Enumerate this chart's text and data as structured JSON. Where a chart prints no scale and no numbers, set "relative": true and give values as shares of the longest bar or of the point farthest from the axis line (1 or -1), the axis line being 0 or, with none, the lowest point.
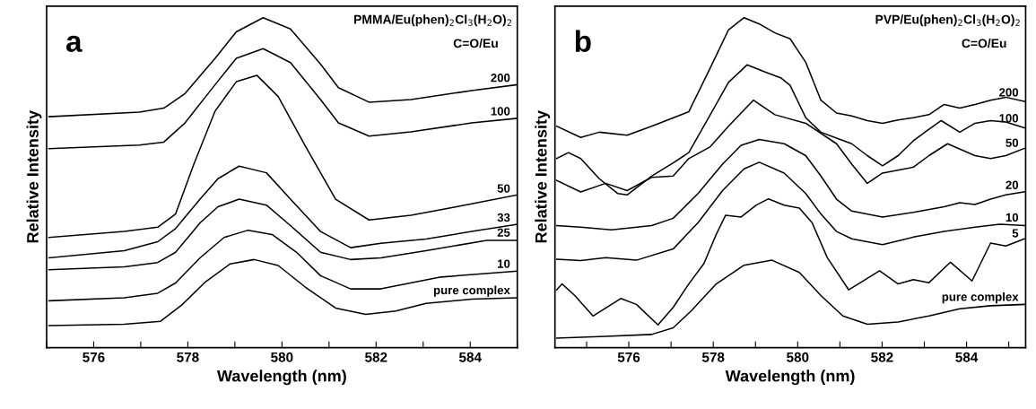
{
  "chart_data": [
    {
      "type": "line",
      "title": "a",
      "annotations": [
        "PMMA/Eu(phen)$_{2}$Cl$_{3}$(H$_{2}$O)$_{2}$",
        "C=O/Eu"
      ],
      "xlabel": "Wavelength (nm)",
      "ylabel": "Relative Intensity",
      "relative": true,
      "xlim": [
        575,
        585
      ],
      "xticks": [
        {
          "value": 575,
          "label": null
        },
        576,
        {
          "value": 577,
          "label": null
        },
        578,
        {
          "value": 579,
          "label": null
        },
        580,
        {
          "value": 581,
          "label": null
        },
        582,
        {
          "value": 583,
          "label": null
        },
        584,
        {
          "value": 585,
          "label": null
        }
      ],
      "grid": false,
      "legend": false,
      "marker": "none",
      "line_style": "solid",
      "series": [
        {
          "name": "200",
          "color": "#000000",
          "x": [
            575.05,
            576.97,
            577.49,
            577.94,
            578.58,
            579.03,
            579.6,
            580.18,
            580.82,
            581.2,
            581.85,
            582.74,
            584.03,
            585
          ],
          "values": [
            0.7,
            0.714,
            0.726,
            0.77,
            0.877,
            0.957,
            1.0,
            0.966,
            0.859,
            0.788,
            0.744,
            0.752,
            0.779,
            0.797
          ]
        },
        {
          "name": "100",
          "color": "#000000",
          "x": [
            575.05,
            576.97,
            577.49,
            577.94,
            578.58,
            579.03,
            579.6,
            580.18,
            580.82,
            581.2,
            581.85,
            582.74,
            584.03,
            585
          ],
          "values": [
            0.603,
            0.614,
            0.623,
            0.681,
            0.797,
            0.877,
            0.906,
            0.864,
            0.752,
            0.681,
            0.641,
            0.654,
            0.681,
            0.695
          ]
        },
        {
          "name": "50",
          "color": "#000000",
          "x": [
            575.05,
            576.65,
            577.36,
            577.74,
            578.13,
            578.58,
            579.03,
            579.47,
            579.92,
            580.5,
            581.14,
            581.85,
            582.74,
            583.71,
            585
          ],
          "values": [
            0.334,
            0.352,
            0.365,
            0.405,
            0.557,
            0.717,
            0.806,
            0.825,
            0.761,
            0.61,
            0.45,
            0.387,
            0.401,
            0.427,
            0.463
          ]
        },
        {
          "name": "33",
          "color": "#000000",
          "x": [
            575.05,
            576.65,
            577.36,
            577.74,
            578.26,
            578.64,
            579.09,
            579.67,
            580.18,
            580.82,
            581.46,
            582.1,
            583.06,
            584.03,
            585
          ],
          "values": [
            0.272,
            0.294,
            0.321,
            0.361,
            0.45,
            0.512,
            0.55,
            0.53,
            0.45,
            0.352,
            0.303,
            0.316,
            0.329,
            0.352,
            0.374
          ]
        },
        {
          "name": "25",
          "color": "#000000",
          "x": [
            575.05,
            576.65,
            577.36,
            577.74,
            578.26,
            578.64,
            579.09,
            579.67,
            580.18,
            580.82,
            581.46,
            582.1,
            583.06,
            584.35,
            585
          ],
          "values": [
            0.236,
            0.245,
            0.258,
            0.289,
            0.378,
            0.427,
            0.45,
            0.432,
            0.37,
            0.289,
            0.267,
            0.272,
            0.294,
            0.325,
            0.325
          ]
        },
        {
          "name": "10",
          "color": "#000000",
          "x": [
            575.05,
            576.65,
            577.36,
            577.74,
            578.26,
            578.77,
            579.28,
            579.79,
            580.31,
            580.82,
            581.46,
            582.1,
            583.38,
            585
          ],
          "values": [
            0.142,
            0.151,
            0.165,
            0.196,
            0.272,
            0.334,
            0.356,
            0.343,
            0.289,
            0.218,
            0.178,
            0.178,
            0.214,
            0.232
          ]
        },
        {
          "name": "pure complex",
          "color": "#000000",
          "x": [
            575.05,
            576.65,
            577.42,
            577.87,
            578.38,
            578.9,
            579.41,
            579.92,
            580.5,
            581.14,
            581.78,
            582.42,
            583.06,
            584.03,
            585
          ],
          "values": [
            0.067,
            0.071,
            0.08,
            0.129,
            0.2,
            0.254,
            0.267,
            0.249,
            0.183,
            0.12,
            0.101,
            0.111,
            0.134,
            0.147,
            0.151
          ]
        }
      ]
    },
    {
      "type": "line",
      "title": "b",
      "annotations": [
        "PVP/Eu(phen)$_{2}$Cl$_{3}$(H$_{2}$O)$_{2}$",
        "C=O/Eu"
      ],
      "xlabel": "Wavelength (nm)",
      "ylabel": "Relative Intensity",
      "relative": true,
      "xlim": [
        574.25,
        585.4
      ],
      "xticks": [
        {
          "value": 575,
          "label": null
        },
        576,
        {
          "value": 577,
          "label": null
        },
        578,
        {
          "value": 579,
          "label": null
        },
        580,
        {
          "value": 581,
          "label": null
        },
        582,
        {
          "value": 583,
          "label": null
        },
        584,
        {
          "value": 585,
          "label": null
        }
      ],
      "grid": false,
      "legend": false,
      "marker": "none",
      "line_style": "solid",
      "series": [
        {
          "name": "200",
          "color": "#000000",
          "x": [
            574.29,
            574.86,
            575.3,
            575.96,
            576.54,
            577.42,
            577.93,
            578.36,
            578.73,
            579.09,
            579.46,
            579.82,
            580.19,
            580.55,
            580.92,
            581.28,
            581.65,
            582.01,
            582.38,
            582.74,
            583.11,
            583.47,
            583.84,
            584.2,
            584.57,
            584.93,
            585.37
          ],
          "values": [
            0.671,
            0.637,
            0.653,
            0.644,
            0.671,
            0.715,
            0.848,
            0.963,
            1.0,
            0.981,
            0.954,
            0.936,
            0.865,
            0.75,
            0.711,
            0.702,
            0.688,
            0.68,
            0.69,
            0.697,
            0.706,
            0.737,
            0.726,
            0.737,
            0.75,
            0.759,
            0.746
          ]
        },
        {
          "name": "100",
          "color": "#000000",
          "x": [
            574.29,
            574.57,
            574.86,
            575.3,
            575.74,
            575.96,
            576.54,
            577.05,
            577.42,
            577.93,
            578.36,
            578.8,
            579.24,
            579.61,
            579.82,
            580.19,
            580.55,
            580.92,
            581.28,
            581.65,
            582.01,
            582.38,
            582.74,
            583.11,
            583.4,
            583.84,
            584.2,
            584.57,
            584.93,
            585.37
          ],
          "values": [
            0.573,
            0.591,
            0.573,
            0.512,
            0.467,
            0.463,
            0.52,
            0.56,
            0.591,
            0.706,
            0.804,
            0.857,
            0.835,
            0.817,
            0.795,
            0.697,
            0.653,
            0.635,
            0.618,
            0.582,
            0.551,
            0.582,
            0.627,
            0.662,
            0.688,
            0.653,
            0.68,
            0.688,
            0.684,
            0.666
          ]
        },
        {
          "name": "50",
          "color": "#000000",
          "x": [
            574.29,
            574.86,
            575.45,
            575.96,
            576.54,
            577.05,
            577.42,
            577.93,
            578.36,
            578.95,
            579.46,
            580.19,
            580.92,
            581.28,
            581.65,
            582.01,
            582.74,
            583.11,
            583.55,
            584.2,
            584.57,
            584.93,
            585.37
          ],
          "values": [
            0.507,
            0.472,
            0.498,
            0.476,
            0.516,
            0.52,
            0.573,
            0.609,
            0.671,
            0.75,
            0.706,
            0.68,
            0.618,
            0.556,
            0.498,
            0.529,
            0.547,
            0.582,
            0.618,
            0.582,
            0.573,
            0.582,
            0.604
          ]
        },
        {
          "name": "20",
          "color": "#000000",
          "x": [
            574.29,
            574.86,
            575.59,
            576.54,
            577.05,
            577.64,
            578.22,
            578.66,
            579.09,
            579.68,
            580.19,
            580.55,
            580.92,
            581.28,
            582.01,
            582.74,
            583.47,
            583.84,
            584.2,
            584.57,
            584.93,
            585.37
          ],
          "values": [
            0.37,
            0.365,
            0.357,
            0.37,
            0.392,
            0.467,
            0.556,
            0.613,
            0.631,
            0.618,
            0.582,
            0.52,
            0.45,
            0.414,
            0.396,
            0.41,
            0.427,
            0.439,
            0.434,
            0.45,
            0.463,
            0.472
          ]
        },
        {
          "name": "10",
          "color": "#000000",
          "x": [
            574.29,
            574.86,
            575.45,
            576.18,
            577.05,
            577.64,
            578.22,
            578.73,
            579.09,
            579.68,
            580.19,
            580.55,
            580.92,
            581.28,
            582.01,
            582.74,
            583.47,
            584.2,
            584.79,
            585.37
          ],
          "values": [
            0.268,
            0.264,
            0.273,
            0.265,
            0.299,
            0.379,
            0.476,
            0.542,
            0.562,
            0.529,
            0.467,
            0.405,
            0.352,
            0.33,
            0.312,
            0.335,
            0.352,
            0.365,
            0.374,
            0.37
          ]
        },
        {
          "name": "5",
          "color": "#000000",
          "x": [
            574.29,
            574.42,
            574.72,
            575.15,
            575.81,
            576.18,
            576.69,
            577.05,
            577.42,
            577.78,
            578.07,
            578.29,
            578.66,
            579.02,
            579.31,
            579.68,
            580.04,
            580.34,
            580.7,
            581.21,
            581.94,
            582.38,
            582.74,
            583.11,
            583.62,
            584.13,
            584.57,
            584.93,
            585.37
          ],
          "values": [
            0.175,
            0.193,
            0.158,
            0.096,
            0.149,
            0.131,
            0.069,
            0.122,
            0.193,
            0.255,
            0.343,
            0.401,
            0.396,
            0.432,
            0.451,
            0.432,
            0.423,
            0.379,
            0.273,
            0.175,
            0.233,
            0.193,
            0.206,
            0.197,
            0.259,
            0.202,
            0.317,
            0.308,
            0.33
          ]
        },
        {
          "name": "pure complex",
          "color": "#000000",
          "x": [
            574.29,
            575.45,
            576.54,
            577.05,
            577.49,
            578.07,
            578.73,
            579.39,
            580.04,
            580.55,
            581.07,
            581.65,
            582.38,
            583.11,
            583.84,
            584.57,
            585.37
          ],
          "values": [
            0.029,
            0.034,
            0.04,
            0.06,
            0.113,
            0.193,
            0.25,
            0.265,
            0.228,
            0.158,
            0.096,
            0.071,
            0.078,
            0.096,
            0.118,
            0.127,
            0.131
          ]
        }
      ]
    }
  ]
}
